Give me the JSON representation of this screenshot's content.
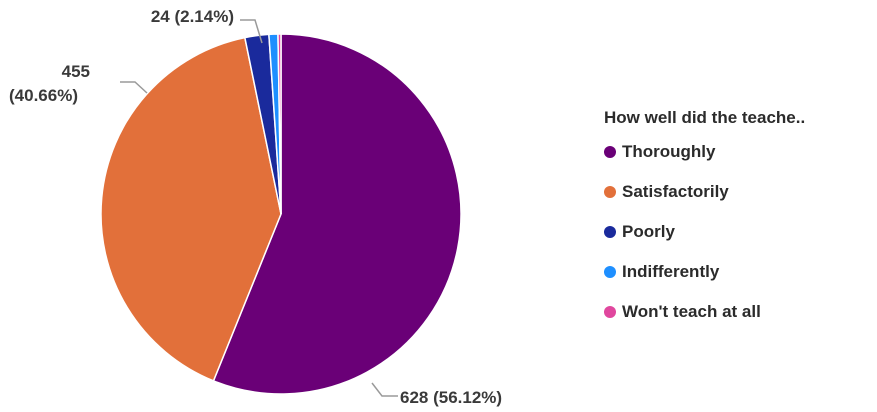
{
  "chart_data": {
    "type": "pie",
    "legend_title": "How well did the teache..",
    "legend_position": "right",
    "start_angle_deg": 0,
    "direction": "clockwise",
    "slices": [
      {
        "name": "Thoroughly",
        "value": 628,
        "percent": 56.12,
        "label": "628 (56.12%)",
        "color": "#6a0077"
      },
      {
        "name": "Satisfactorily",
        "value": 455,
        "percent": 40.66,
        "label": "455\n(40.66%)",
        "color": "#e2703a"
      },
      {
        "name": "Poorly",
        "value": 24,
        "percent": 2.14,
        "label": "24 (2.14%)",
        "color": "#1a2a9c"
      },
      {
        "name": "Indifferently",
        "value": 9,
        "percent": 0.8,
        "label": "",
        "color": "#1e8fff"
      },
      {
        "name": "Won't teach at all",
        "value": 3,
        "percent": 0.27,
        "label": "",
        "color": "#e0479e"
      }
    ]
  }
}
